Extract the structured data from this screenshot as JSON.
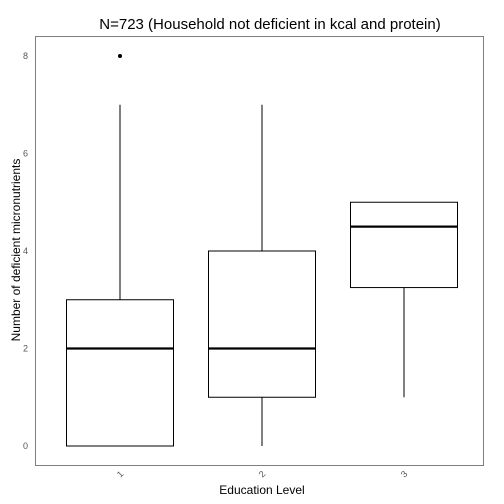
{
  "chart_data": {
    "type": "boxplot",
    "title": "N=723 (Household not deficient in kcal and protein)",
    "xlabel": "Education Level",
    "ylabel": "Number of deficient micronutrients",
    "categories": [
      "1",
      "2",
      "3"
    ],
    "yticks": [
      0,
      2,
      4,
      6,
      8
    ],
    "ylim": [
      -0.4,
      8.4
    ],
    "grid": false,
    "boxes": [
      {
        "category": "1",
        "whisker_low": 0,
        "q1": 0,
        "median": 2,
        "q3": 3,
        "whisker_high": 7,
        "outliers": [
          8
        ]
      },
      {
        "category": "2",
        "whisker_low": 0,
        "q1": 1,
        "median": 2,
        "q3": 4,
        "whisker_high": 7,
        "outliers": []
      },
      {
        "category": "3",
        "whisker_low": 1,
        "q1": 3.25,
        "median": 4.5,
        "q3": 5,
        "whisker_high": 5,
        "outliers": []
      }
    ],
    "colors": {
      "box_stroke": "#000000",
      "box_fill": "#ffffff",
      "tick_text": "#555555",
      "panel_border": "#7f7f7f"
    }
  }
}
